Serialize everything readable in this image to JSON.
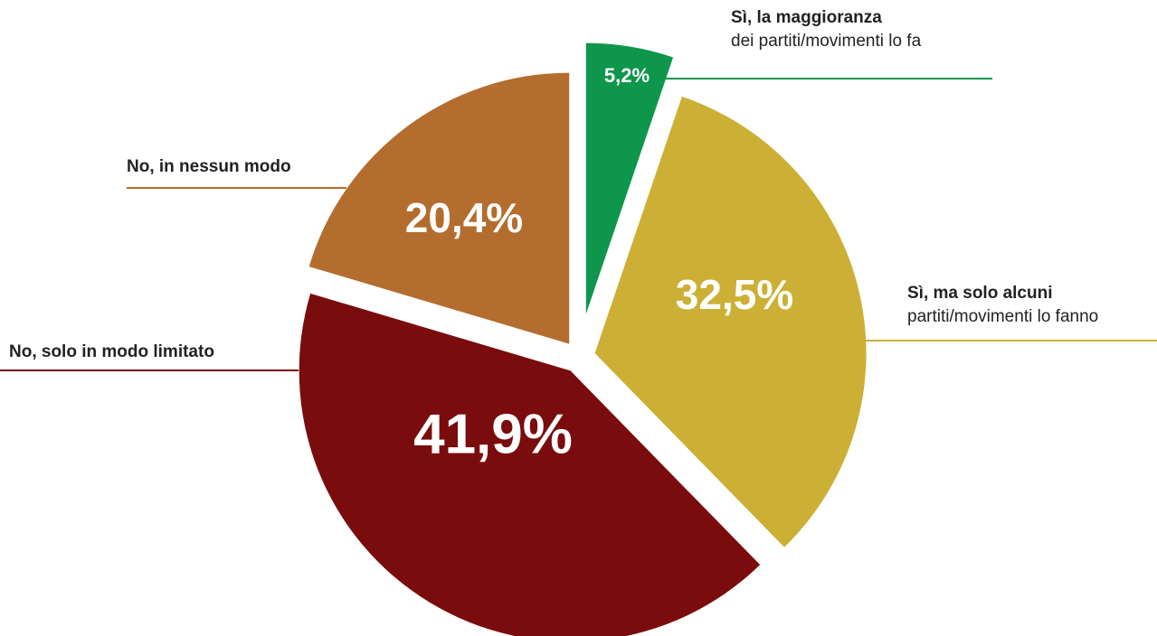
{
  "chart_data": {
    "type": "pie",
    "categories": [
      [
        "Sì, la maggioranza",
        "dei partiti/movimenti lo fa"
      ],
      [
        "Sì, ma solo alcuni",
        "partiti/movimenti lo fanno"
      ],
      [
        "No, solo in modo limitato"
      ],
      [
        "No, in nessun modo"
      ]
    ],
    "values": [
      5.2,
      32.5,
      41.9,
      20.4
    ],
    "value_labels": [
      "5,2%",
      "32,5%",
      "41,9%",
      "20,4%"
    ],
    "colors": [
      "#0e964c",
      "#ccb035",
      "#7a0c0e",
      "#b36d2f"
    ]
  }
}
